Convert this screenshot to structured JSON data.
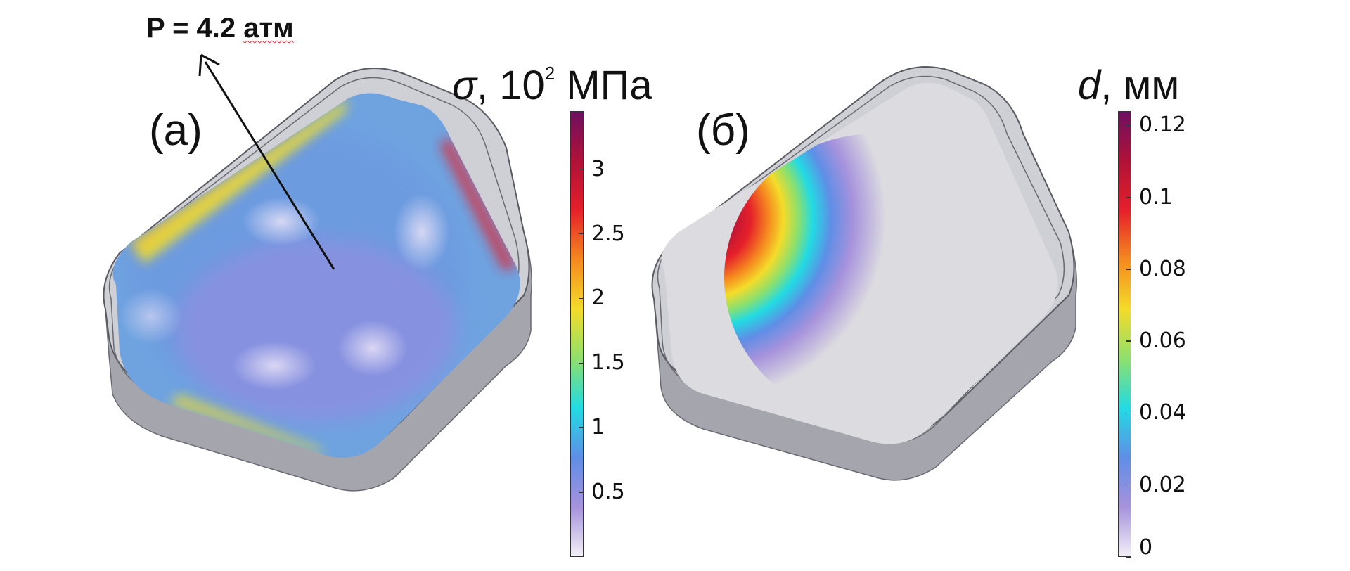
{
  "panel_a": {
    "label": "(а)",
    "pressure": {
      "text": "P = 4.2 ",
      "unit": "атм"
    },
    "colorbar": {
      "symbol": "σ",
      "text": ", 10",
      "sup": "2",
      "unit": " МПа",
      "min": 0,
      "max": 3.45,
      "ticks": [
        "0.5",
        "1",
        "1.5",
        "2",
        "2.5",
        "3"
      ],
      "tick_values": [
        0.5,
        1,
        1.5,
        2,
        2.5,
        3
      ]
    }
  },
  "panel_b": {
    "label": "(б)",
    "colorbar": {
      "symbol": "d",
      "text": ",",
      "unit": " мм",
      "min": 0,
      "max": 0.124,
      "ticks": [
        "0",
        "0.02",
        "0.04",
        "0.06",
        "0.08",
        "0.1",
        "0.12"
      ],
      "tick_values": [
        0,
        0.02,
        0.04,
        0.06,
        0.08,
        0.1,
        0.12
      ]
    }
  },
  "colormap": [
    "#f2eff6",
    "#a692dc",
    "#5f8ee6",
    "#22dbe3",
    "#8ee06c",
    "#f4dc2a",
    "#f58a1f",
    "#e5202a",
    "#b01238",
    "#6e1060"
  ],
  "colors": {
    "frame": "#bfbfc6",
    "frame_dark": "#8f8f98",
    "outline": "#3a3a3a"
  }
}
